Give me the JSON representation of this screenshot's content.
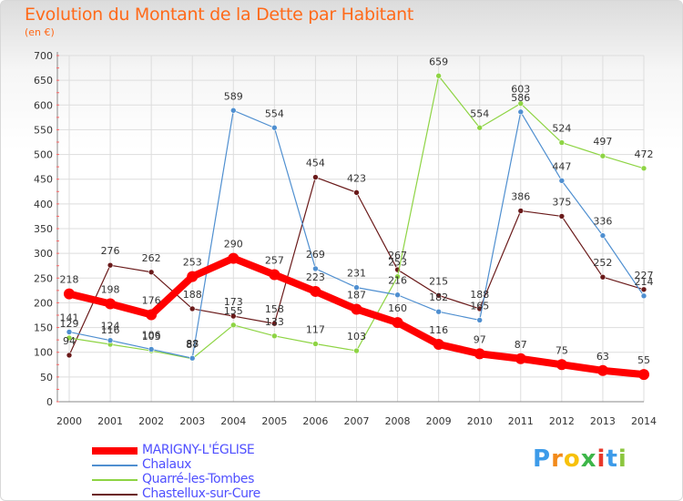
{
  "title": "Evolution du Montant de la Dette par Habitant",
  "subtitle": "(en €)",
  "logo": {
    "letters": [
      "P",
      "r",
      "o",
      "x",
      "i",
      "t",
      "i"
    ],
    "colors": [
      "#3d9be9",
      "#f28a1a",
      "#f7c10c",
      "#3db649",
      "#e8392b",
      "#3d9be9",
      "#8cc63f"
    ]
  },
  "chart_data": {
    "type": "line",
    "x": [
      "2000",
      "2001",
      "2002",
      "2003",
      "2004",
      "2005",
      "2006",
      "2007",
      "2008",
      "2009",
      "2010",
      "2011",
      "2012",
      "2013",
      "2014"
    ],
    "ylim": [
      0,
      700
    ],
    "yticks": [
      0,
      50,
      100,
      150,
      200,
      250,
      300,
      350,
      400,
      450,
      500,
      550,
      600,
      650,
      700
    ],
    "grid": true,
    "legend_position": "bottom-left",
    "series": [
      {
        "name": "MARIGNY-L'ÉGLISE",
        "color": "#ff0000",
        "values": [
          218,
          198,
          176,
          253,
          290,
          257,
          223,
          187,
          160,
          116,
          97,
          87,
          75,
          63,
          55
        ]
      },
      {
        "name": "Chalaux",
        "color": "#4f8fd0",
        "values": [
          141,
          124,
          106,
          88,
          589,
          554,
          269,
          231,
          216,
          182,
          165,
          586,
          447,
          336,
          214
        ]
      },
      {
        "name": "Quarré-les-Tombes",
        "color": "#8ed444",
        "values": [
          129,
          116,
          103,
          87,
          155,
          133,
          117,
          103,
          253,
          659,
          554,
          603,
          524,
          497,
          472
        ]
      },
      {
        "name": "Chastellux-sur-Cure",
        "color": "#6a1a1a",
        "values": [
          94,
          276,
          262,
          188,
          173,
          158,
          454,
          423,
          267,
          215,
          188,
          386,
          375,
          252,
          227
        ]
      }
    ]
  }
}
